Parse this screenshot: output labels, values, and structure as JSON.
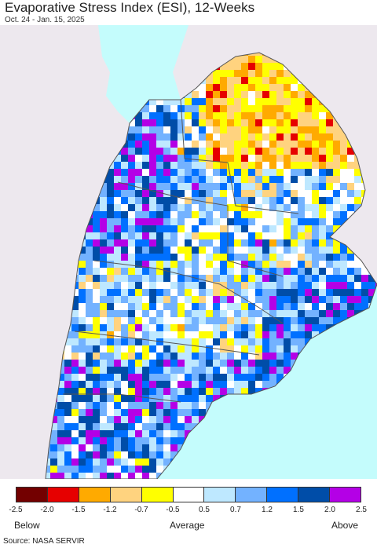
{
  "header": {
    "title": "Evaporative Stress Index (ESI), 12-Weeks",
    "subtitle": "Oct. 24 - Jan. 15, 2025"
  },
  "map": {
    "ocean_color": "#c4fcfc",
    "land_outside_color": "#ede8ee",
    "border_color": "#555555"
  },
  "legend": {
    "colors": [
      "#730000",
      "#e60000",
      "#ffaa00",
      "#ffd37f",
      "#ffff00",
      "#ffffff",
      "#bee8ff",
      "#73b2ff",
      "#0070ff",
      "#004da8",
      "#b400e6"
    ],
    "ticks": [
      "-2.5",
      "-2.0",
      "-1.5",
      "-1.2",
      "-0.7",
      "-0.5",
      "0.5",
      "0.7",
      "1.2",
      "1.5",
      "2.0",
      "2.5"
    ],
    "below_label": "Below",
    "average_label": "Average",
    "above_label": "Above"
  },
  "footer": {
    "source": "Source: NASA SERVIR"
  }
}
